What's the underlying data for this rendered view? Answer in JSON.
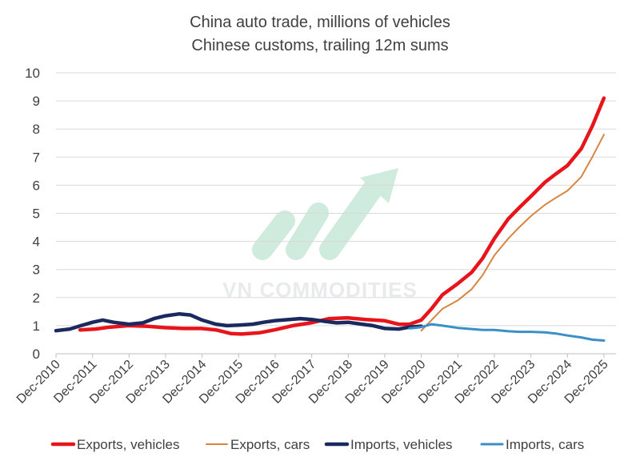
{
  "watermark": {
    "text": "VN COMMODITIES"
  },
  "colors": {
    "exports_vehicles": "#e8141b",
    "exports_cars": "#d9843f",
    "imports_vehicles": "#1b2a5e",
    "imports_cars": "#3b8fc8",
    "grid": "#d9d9d9",
    "axis": "#bfbfbf"
  },
  "chart_data": {
    "type": "line",
    "title": "China auto trade, millions of vehicles",
    "subtitle": "Chinese customs, trailing 12m sums",
    "ylim": [
      0,
      10
    ],
    "yticks": [
      0,
      1,
      2,
      3,
      4,
      5,
      6,
      7,
      8,
      9,
      10
    ],
    "xlim": [
      2010.92,
      2026.25
    ],
    "xticks": [
      {
        "x": 2010.92,
        "label": "Dec-2010"
      },
      {
        "x": 2011.92,
        "label": "Dec-2011"
      },
      {
        "x": 2012.92,
        "label": "Dec-2012"
      },
      {
        "x": 2013.92,
        "label": "Dec-2013"
      },
      {
        "x": 2014.92,
        "label": "Dec-2014"
      },
      {
        "x": 2015.92,
        "label": "Dec-2015"
      },
      {
        "x": 2016.92,
        "label": "Dec-2016"
      },
      {
        "x": 2017.92,
        "label": "Dec-2017"
      },
      {
        "x": 2018.92,
        "label": "Dec-2018"
      },
      {
        "x": 2019.92,
        "label": "Dec-2019"
      },
      {
        "x": 2020.92,
        "label": "Dec-2020"
      },
      {
        "x": 2021.92,
        "label": "Dec-2021"
      },
      {
        "x": 2022.92,
        "label": "Dec-2022"
      },
      {
        "x": 2023.92,
        "label": "Dec-2023"
      },
      {
        "x": 2024.92,
        "label": "Dec-2024"
      },
      {
        "x": 2025.92,
        "label": "Dec-2025"
      }
    ],
    "series": [
      {
        "name": "Exports, vehicles",
        "color_key": "exports_vehicles",
        "width": 4.5,
        "points": [
          [
            2011.58,
            0.85
          ],
          [
            2012.0,
            0.88
          ],
          [
            2012.4,
            0.95
          ],
          [
            2012.9,
            1.0
          ],
          [
            2013.4,
            0.98
          ],
          [
            2013.9,
            0.93
          ],
          [
            2014.4,
            0.9
          ],
          [
            2014.9,
            0.9
          ],
          [
            2015.3,
            0.85
          ],
          [
            2015.7,
            0.72
          ],
          [
            2016.0,
            0.7
          ],
          [
            2016.5,
            0.75
          ],
          [
            2016.9,
            0.85
          ],
          [
            2017.4,
            1.0
          ],
          [
            2017.9,
            1.1
          ],
          [
            2018.4,
            1.25
          ],
          [
            2018.9,
            1.28
          ],
          [
            2019.4,
            1.22
          ],
          [
            2019.9,
            1.18
          ],
          [
            2020.3,
            1.05
          ],
          [
            2020.6,
            1.05
          ],
          [
            2020.92,
            1.2
          ],
          [
            2021.2,
            1.6
          ],
          [
            2021.5,
            2.1
          ],
          [
            2021.92,
            2.5
          ],
          [
            2022.3,
            2.9
          ],
          [
            2022.6,
            3.4
          ],
          [
            2022.92,
            4.1
          ],
          [
            2023.3,
            4.8
          ],
          [
            2023.6,
            5.2
          ],
          [
            2023.92,
            5.6
          ],
          [
            2024.3,
            6.1
          ],
          [
            2024.6,
            6.4
          ],
          [
            2024.92,
            6.7
          ],
          [
            2025.3,
            7.3
          ],
          [
            2025.6,
            8.1
          ],
          [
            2025.92,
            9.1
          ]
        ]
      },
      {
        "name": "Exports, cars",
        "color_key": "exports_cars",
        "width": 2,
        "points": [
          [
            2020.92,
            0.82
          ],
          [
            2021.2,
            1.2
          ],
          [
            2021.5,
            1.6
          ],
          [
            2021.92,
            1.9
          ],
          [
            2022.3,
            2.3
          ],
          [
            2022.6,
            2.8
          ],
          [
            2022.92,
            3.5
          ],
          [
            2023.3,
            4.1
          ],
          [
            2023.6,
            4.5
          ],
          [
            2023.92,
            4.9
          ],
          [
            2024.3,
            5.3
          ],
          [
            2024.6,
            5.55
          ],
          [
            2024.92,
            5.8
          ],
          [
            2025.3,
            6.3
          ],
          [
            2025.6,
            7.0
          ],
          [
            2025.92,
            7.8
          ]
        ]
      },
      {
        "name": "Imports, vehicles",
        "color_key": "imports_vehicles",
        "width": 4.5,
        "points": [
          [
            2010.92,
            0.82
          ],
          [
            2011.3,
            0.88
          ],
          [
            2011.6,
            1.0
          ],
          [
            2011.92,
            1.12
          ],
          [
            2012.2,
            1.2
          ],
          [
            2012.5,
            1.12
          ],
          [
            2012.92,
            1.05
          ],
          [
            2013.3,
            1.1
          ],
          [
            2013.6,
            1.25
          ],
          [
            2013.92,
            1.35
          ],
          [
            2014.3,
            1.42
          ],
          [
            2014.6,
            1.38
          ],
          [
            2014.92,
            1.2
          ],
          [
            2015.3,
            1.05
          ],
          [
            2015.6,
            1.0
          ],
          [
            2015.92,
            1.02
          ],
          [
            2016.3,
            1.05
          ],
          [
            2016.6,
            1.12
          ],
          [
            2016.92,
            1.18
          ],
          [
            2017.3,
            1.22
          ],
          [
            2017.6,
            1.25
          ],
          [
            2017.92,
            1.22
          ],
          [
            2018.3,
            1.15
          ],
          [
            2018.6,
            1.1
          ],
          [
            2018.92,
            1.12
          ],
          [
            2019.3,
            1.05
          ],
          [
            2019.6,
            1.0
          ],
          [
            2019.92,
            0.9
          ],
          [
            2020.3,
            0.88
          ],
          [
            2020.6,
            0.95
          ],
          [
            2020.92,
            0.98
          ]
        ]
      },
      {
        "name": "Imports, cars",
        "color_key": "imports_cars",
        "width": 3,
        "points": [
          [
            2020.6,
            0.9
          ],
          [
            2020.92,
            0.95
          ],
          [
            2021.2,
            1.05
          ],
          [
            2021.5,
            1.0
          ],
          [
            2021.92,
            0.92
          ],
          [
            2022.3,
            0.88
          ],
          [
            2022.6,
            0.85
          ],
          [
            2022.92,
            0.85
          ],
          [
            2023.3,
            0.8
          ],
          [
            2023.6,
            0.78
          ],
          [
            2023.92,
            0.78
          ],
          [
            2024.3,
            0.76
          ],
          [
            2024.6,
            0.72
          ],
          [
            2024.92,
            0.65
          ],
          [
            2025.3,
            0.58
          ],
          [
            2025.6,
            0.5
          ],
          [
            2025.92,
            0.47
          ]
        ]
      }
    ],
    "legend": [
      {
        "label": "Exports, vehicles",
        "color_key": "exports_vehicles",
        "width": 4.5
      },
      {
        "label": "Exports, cars",
        "color_key": "exports_cars",
        "width": 2
      },
      {
        "label": "Imports, vehicles",
        "color_key": "imports_vehicles",
        "width": 4.5
      },
      {
        "label": "Imports, cars",
        "color_key": "imports_cars",
        "width": 3
      }
    ]
  }
}
